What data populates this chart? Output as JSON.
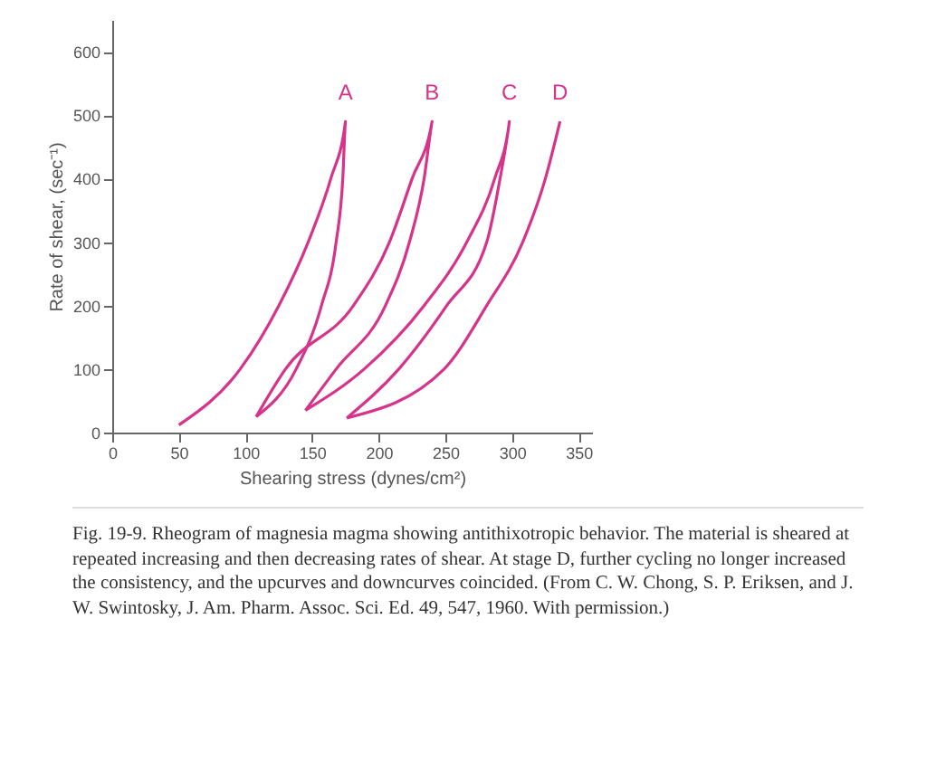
{
  "chart_data": {
    "type": "line",
    "xlabel": "Shearing stress (dynes/cm²)",
    "ylabel": "Rate of shear, (sec⁻¹)",
    "xlim": [
      0,
      360
    ],
    "xticks": [
      0,
      50,
      100,
      150,
      200,
      250,
      300,
      350
    ],
    "ylim": [
      0,
      650
    ],
    "yticks": [
      0,
      100,
      200,
      300,
      400,
      500,
      600
    ],
    "series": [
      {
        "name": "A",
        "color": "#d6338a",
        "x": [
          50,
          96,
          125,
          147,
          164,
          175,
          173,
          168,
          157,
          138,
          108
        ],
        "values": [
          12,
          100,
          200,
          300,
          400,
          490,
          400,
          300,
          200,
          100,
          25
        ]
      },
      {
        "name": "B",
        "color": "#d6338a",
        "x": [
          108,
          130,
          181,
          208,
          225,
          240,
          234,
          223,
          205,
          168,
          145
        ],
        "values": [
          25,
          100,
          200,
          300,
          400,
          490,
          400,
          300,
          200,
          100,
          35
        ]
      },
      {
        "name": "C",
        "color": "#d6338a",
        "x": [
          145,
          189,
          234,
          266,
          287,
          298,
          291,
          281,
          251,
          215,
          176
        ],
        "values": [
          35,
          100,
          200,
          300,
          400,
          490,
          400,
          300,
          200,
          100,
          23
        ]
      },
      {
        "name": "D",
        "color": "#d6338a",
        "x": [
          176,
          249,
          281,
          308,
          325,
          336
        ],
        "values": [
          23,
          100,
          200,
          300,
          400,
          490
        ]
      }
    ],
    "annotations": [
      "Fig. 19-9. Rheogram of magnesia magma showing antithixotropic behavior. The material is sheared at repeated increasing and then decreasing rates of shear. At stage D, further cycling no longer increased the consistency, and the upcurves and downcurves coincided. (From C. W. Chong, S. P. Eriksen, and J. W. Swintosky, J. Am. Pharm. Assoc. Sci. Ed. 49, 547, 1960. With permission.)"
    ]
  }
}
